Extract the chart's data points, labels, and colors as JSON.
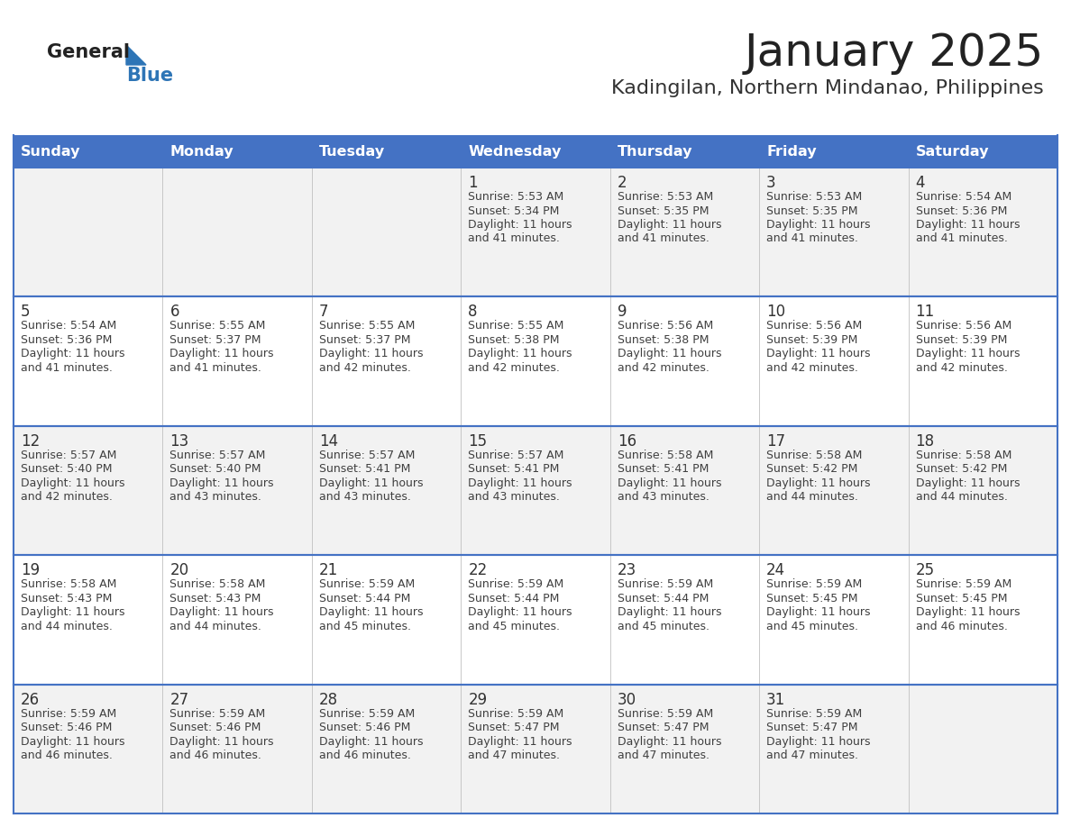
{
  "title": "January 2025",
  "subtitle": "Kadingilan, Northern Mindanao, Philippines",
  "days_of_week": [
    "Sunday",
    "Monday",
    "Tuesday",
    "Wednesday",
    "Thursday",
    "Friday",
    "Saturday"
  ],
  "header_bg": "#4472C4",
  "header_text": "#FFFFFF",
  "row_bg_odd": "#F2F2F2",
  "row_bg_even": "#FFFFFF",
  "cell_border_color": "#4472C4",
  "cell_line_color": "#9DC3E6",
  "day_number_color": "#333333",
  "text_color": "#404040",
  "logo_general_color": "#222222",
  "logo_blue_color": "#2E75B6",
  "logo_triangle_color": "#2E75B6",
  "title_color": "#222222",
  "subtitle_color": "#333333",
  "calendar_data": [
    [
      null,
      null,
      null,
      {
        "day": 1,
        "sunrise": "5:53 AM",
        "sunset": "5:34 PM",
        "daylight": "11 hours and 41 minutes."
      },
      {
        "day": 2,
        "sunrise": "5:53 AM",
        "sunset": "5:35 PM",
        "daylight": "11 hours and 41 minutes."
      },
      {
        "day": 3,
        "sunrise": "5:53 AM",
        "sunset": "5:35 PM",
        "daylight": "11 hours and 41 minutes."
      },
      {
        "day": 4,
        "sunrise": "5:54 AM",
        "sunset": "5:36 PM",
        "daylight": "11 hours and 41 minutes."
      }
    ],
    [
      {
        "day": 5,
        "sunrise": "5:54 AM",
        "sunset": "5:36 PM",
        "daylight": "11 hours and 41 minutes."
      },
      {
        "day": 6,
        "sunrise": "5:55 AM",
        "sunset": "5:37 PM",
        "daylight": "11 hours and 41 minutes."
      },
      {
        "day": 7,
        "sunrise": "5:55 AM",
        "sunset": "5:37 PM",
        "daylight": "11 hours and 42 minutes."
      },
      {
        "day": 8,
        "sunrise": "5:55 AM",
        "sunset": "5:38 PM",
        "daylight": "11 hours and 42 minutes."
      },
      {
        "day": 9,
        "sunrise": "5:56 AM",
        "sunset": "5:38 PM",
        "daylight": "11 hours and 42 minutes."
      },
      {
        "day": 10,
        "sunrise": "5:56 AM",
        "sunset": "5:39 PM",
        "daylight": "11 hours and 42 minutes."
      },
      {
        "day": 11,
        "sunrise": "5:56 AM",
        "sunset": "5:39 PM",
        "daylight": "11 hours and 42 minutes."
      }
    ],
    [
      {
        "day": 12,
        "sunrise": "5:57 AM",
        "sunset": "5:40 PM",
        "daylight": "11 hours and 42 minutes."
      },
      {
        "day": 13,
        "sunrise": "5:57 AM",
        "sunset": "5:40 PM",
        "daylight": "11 hours and 43 minutes."
      },
      {
        "day": 14,
        "sunrise": "5:57 AM",
        "sunset": "5:41 PM",
        "daylight": "11 hours and 43 minutes."
      },
      {
        "day": 15,
        "sunrise": "5:57 AM",
        "sunset": "5:41 PM",
        "daylight": "11 hours and 43 minutes."
      },
      {
        "day": 16,
        "sunrise": "5:58 AM",
        "sunset": "5:41 PM",
        "daylight": "11 hours and 43 minutes."
      },
      {
        "day": 17,
        "sunrise": "5:58 AM",
        "sunset": "5:42 PM",
        "daylight": "11 hours and 44 minutes."
      },
      {
        "day": 18,
        "sunrise": "5:58 AM",
        "sunset": "5:42 PM",
        "daylight": "11 hours and 44 minutes."
      }
    ],
    [
      {
        "day": 19,
        "sunrise": "5:58 AM",
        "sunset": "5:43 PM",
        "daylight": "11 hours and 44 minutes."
      },
      {
        "day": 20,
        "sunrise": "5:58 AM",
        "sunset": "5:43 PM",
        "daylight": "11 hours and 44 minutes."
      },
      {
        "day": 21,
        "sunrise": "5:59 AM",
        "sunset": "5:44 PM",
        "daylight": "11 hours and 45 minutes."
      },
      {
        "day": 22,
        "sunrise": "5:59 AM",
        "sunset": "5:44 PM",
        "daylight": "11 hours and 45 minutes."
      },
      {
        "day": 23,
        "sunrise": "5:59 AM",
        "sunset": "5:44 PM",
        "daylight": "11 hours and 45 minutes."
      },
      {
        "day": 24,
        "sunrise": "5:59 AM",
        "sunset": "5:45 PM",
        "daylight": "11 hours and 45 minutes."
      },
      {
        "day": 25,
        "sunrise": "5:59 AM",
        "sunset": "5:45 PM",
        "daylight": "11 hours and 46 minutes."
      }
    ],
    [
      {
        "day": 26,
        "sunrise": "5:59 AM",
        "sunset": "5:46 PM",
        "daylight": "11 hours and 46 minutes."
      },
      {
        "day": 27,
        "sunrise": "5:59 AM",
        "sunset": "5:46 PM",
        "daylight": "11 hours and 46 minutes."
      },
      {
        "day": 28,
        "sunrise": "5:59 AM",
        "sunset": "5:46 PM",
        "daylight": "11 hours and 46 minutes."
      },
      {
        "day": 29,
        "sunrise": "5:59 AM",
        "sunset": "5:47 PM",
        "daylight": "11 hours and 47 minutes."
      },
      {
        "day": 30,
        "sunrise": "5:59 AM",
        "sunset": "5:47 PM",
        "daylight": "11 hours and 47 minutes."
      },
      {
        "day": 31,
        "sunrise": "5:59 AM",
        "sunset": "5:47 PM",
        "daylight": "11 hours and 47 minutes."
      },
      null
    ]
  ]
}
